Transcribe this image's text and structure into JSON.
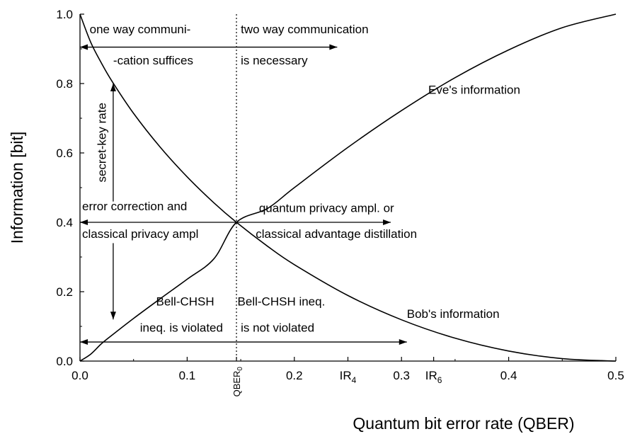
{
  "chart_data": {
    "type": "line",
    "xlabel": "Quantum bit error rate (QBER)",
    "ylabel": "Information [bit]",
    "xlim": [
      0,
      0.5
    ],
    "ylim": [
      0,
      1
    ],
    "x_ticks": [
      {
        "value": 0.0,
        "label": "0.0"
      },
      {
        "value": 0.1,
        "label": "0.1"
      },
      {
        "value": 0.2,
        "label": "0.2"
      },
      {
        "value": 0.3,
        "label": "0.3"
      },
      {
        "value": 0.4,
        "label": "0.4"
      },
      {
        "value": 0.5,
        "label": "0.5"
      }
    ],
    "y_ticks": [
      {
        "value": 0.0,
        "label": "0.0"
      },
      {
        "value": 0.2,
        "label": "0.2"
      },
      {
        "value": 0.4,
        "label": "0.4"
      },
      {
        "value": 0.6,
        "label": "0.6"
      },
      {
        "value": 0.8,
        "label": "0.8"
      },
      {
        "value": 1.0,
        "label": "1.0"
      }
    ],
    "special_x_ticks": [
      {
        "value": 0.146,
        "label": "QBER",
        "sub": "0"
      },
      {
        "value": 0.25,
        "label": "IR",
        "sub": "4"
      },
      {
        "value": 0.33,
        "label": "IR",
        "sub": "6"
      }
    ],
    "series": [
      {
        "name": "Bob's information",
        "x": [
          0.0,
          0.01,
          0.02,
          0.03,
          0.05,
          0.075,
          0.1,
          0.125,
          0.146,
          0.175,
          0.2,
          0.25,
          0.3,
          0.35,
          0.4,
          0.45,
          0.5
        ],
        "y": [
          1.0,
          0.919,
          0.859,
          0.806,
          0.714,
          0.616,
          0.531,
          0.456,
          0.4,
          0.331,
          0.278,
          0.189,
          0.119,
          0.066,
          0.029,
          0.007,
          0.0
        ]
      },
      {
        "name": "Eve's information",
        "x": [
          0.0,
          0.01,
          0.02,
          0.03,
          0.05,
          0.075,
          0.1,
          0.125,
          0.146,
          0.175,
          0.2,
          0.25,
          0.3,
          0.35,
          0.4,
          0.45,
          0.5
        ],
        "y": [
          0.0,
          0.02,
          0.05,
          0.075,
          0.123,
          0.18,
          0.236,
          0.295,
          0.4,
          0.44,
          0.5,
          0.616,
          0.722,
          0.817,
          0.897,
          0.961,
          1.0
        ]
      }
    ],
    "vertical_line": {
      "x": 0.146,
      "style": "dotted"
    },
    "arrows": [
      {
        "from": [
          0.0,
          0.905
        ],
        "to": [
          0.24,
          0.905
        ],
        "heads": "both"
      },
      {
        "from": [
          0.0,
          0.4
        ],
        "to": [
          0.29,
          0.4
        ],
        "heads": "both"
      },
      {
        "from": [
          0.0,
          0.055
        ],
        "to": [
          0.305,
          0.055
        ],
        "heads": "both"
      },
      {
        "from": [
          0.031,
          0.46
        ],
        "to": [
          0.031,
          0.8
        ],
        "heads": "end"
      },
      {
        "from": [
          0.031,
          0.34
        ],
        "to": [
          0.031,
          0.12
        ],
        "heads": "end"
      }
    ],
    "annotations": [
      {
        "text": "one way communi-",
        "x": 0.009,
        "y": 0.945,
        "anchor": "start"
      },
      {
        "text": "-cation suffices",
        "x": 0.031,
        "y": 0.855,
        "anchor": "start"
      },
      {
        "text": "two way communication",
        "x": 0.15,
        "y": 0.945,
        "anchor": "start"
      },
      {
        "text": "is necessary",
        "x": 0.15,
        "y": 0.855,
        "anchor": "start"
      },
      {
        "text": "Eve's information",
        "x": 0.325,
        "y": 0.77,
        "anchor": "start"
      },
      {
        "text": "error correction and",
        "x": 0.002,
        "y": 0.435,
        "anchor": "start"
      },
      {
        "text": "classical privacy ampl",
        "x": 0.002,
        "y": 0.355,
        "anchor": "start"
      },
      {
        "text": "quantum privacy ampl. or",
        "x": 0.167,
        "y": 0.43,
        "anchor": "start"
      },
      {
        "text": "classical advantage distillation",
        "x": 0.164,
        "y": 0.355,
        "anchor": "start"
      },
      {
        "text": "Bell-CHSH",
        "x": 0.071,
        "y": 0.16,
        "anchor": "start"
      },
      {
        "text": "ineq. is violated",
        "x": 0.056,
        "y": 0.085,
        "anchor": "start"
      },
      {
        "text": "Bell-CHSH ineq.",
        "x": 0.147,
        "y": 0.16,
        "anchor": "start"
      },
      {
        "text": "is not violated",
        "x": 0.15,
        "y": 0.085,
        "anchor": "start"
      },
      {
        "text": "Bob's information",
        "x": 0.305,
        "y": 0.125,
        "anchor": "start"
      },
      {
        "text": "secret-key rate",
        "x": 0.024,
        "y": 0.63,
        "anchor": "middle",
        "rotate": -90
      }
    ]
  }
}
